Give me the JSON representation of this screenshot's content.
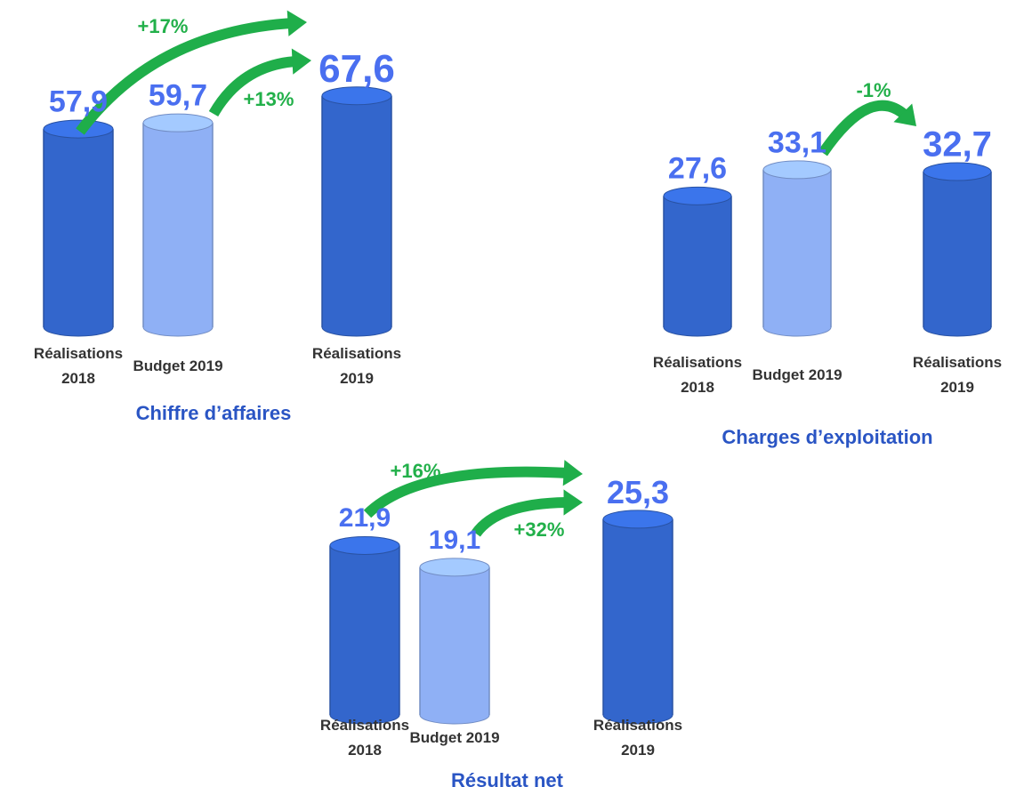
{
  "chart_data": [
    {
      "type": "bar",
      "title": "Chiffre d’affaires",
      "categories": [
        "Réalisations 2018",
        "Budget 2019",
        "Réalisations 2019"
      ],
      "values": [
        57.9,
        59.7,
        67.6
      ],
      "value_labels": [
        "57,9",
        "59,7",
        "67,6"
      ],
      "colors": [
        "#3366cc",
        "#8fb0f5",
        "#3366cc"
      ],
      "annotations": [
        "+17%",
        "+13%"
      ]
    },
    {
      "type": "bar",
      "title": "Charges d’exploitation",
      "categories": [
        "Réalisations 2018",
        "Budget 2019",
        "Réalisations 2019"
      ],
      "values": [
        27.6,
        33.1,
        32.7
      ],
      "value_labels": [
        "27,6",
        "33,1",
        "32,7"
      ],
      "colors": [
        "#3366cc",
        "#8fb0f5",
        "#3366cc"
      ],
      "annotations": [
        "-1%"
      ]
    },
    {
      "type": "bar",
      "title": "Résultat net",
      "categories": [
        "Réalisations 2018",
        "Budget 2019",
        "Réalisations 2019"
      ],
      "values": [
        21.9,
        19.1,
        25.3
      ],
      "value_labels": [
        "21,9",
        "19,1",
        "25,3"
      ],
      "colors": [
        "#3366cc",
        "#8fb0f5",
        "#3366cc"
      ],
      "annotations": [
        "+16%",
        "+32%"
      ]
    }
  ]
}
